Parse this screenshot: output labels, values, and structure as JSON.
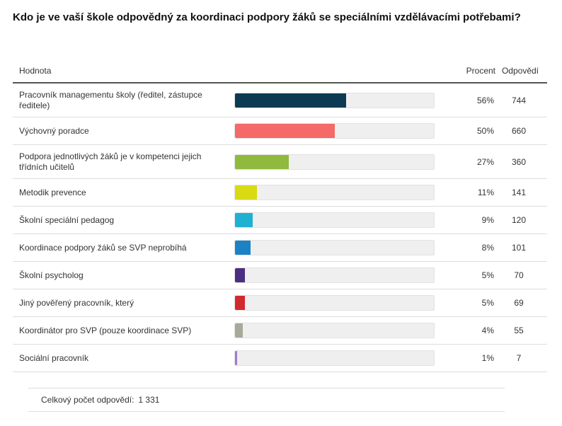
{
  "chart_data": {
    "type": "bar",
    "title": "Kdo je ve vaší škole odpovědný za koordinaci podpory žáků se speciálními vzdělávacími potřebami?",
    "columns": [
      "Hodnota",
      "Procent",
      "Odpovědí"
    ],
    "categories": [
      "Pracovník managementu školy (ředitel, zástupce ředitele)",
      "Výchovný poradce",
      "Podpora jednotlivých žáků je v kompetenci jejich třídních učitelů",
      "Metodik prevence",
      "Školní speciální pedagog",
      "Koordinace podpory žáků se SVP neprobíhá",
      "Školní psycholog",
      "Jiný pověřený pracovník, který",
      "Koordinátor pro SVP (pouze koordinace SVP)",
      "Sociální pracovník"
    ],
    "values": [
      56,
      50,
      27,
      11,
      9,
      8,
      5,
      5,
      4,
      1
    ],
    "value_labels": [
      "56%",
      "50%",
      "27%",
      "11%",
      "9%",
      "8%",
      "5%",
      "5%",
      "4%",
      "1%"
    ],
    "responses": [
      744,
      660,
      360,
      141,
      120,
      101,
      70,
      69,
      55,
      7
    ],
    "colors": [
      "#0b3a52",
      "#f56969",
      "#8fba3d",
      "#d9d914",
      "#1fb1d2",
      "#1b82c5",
      "#4b2e80",
      "#d2292f",
      "#a9a99b",
      "#9d7cc8"
    ],
    "xlim": [
      0,
      100
    ],
    "total_label": "Celkový počet odpovědí:",
    "total": {
      "value": 1331,
      "label": "1 331"
    }
  }
}
